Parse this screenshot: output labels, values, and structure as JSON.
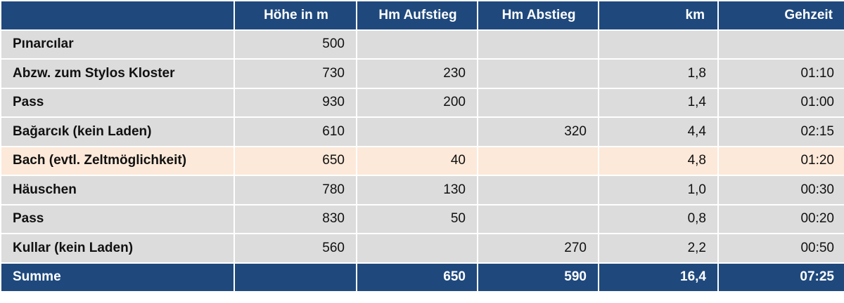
{
  "header": {
    "name": "",
    "height": "Höhe in m",
    "ascent": "Hm Aufstieg",
    "descent": "Hm Abstieg",
    "km": "km",
    "time": "Gehzeit"
  },
  "rows": [
    {
      "name": "Pınarcılar",
      "height": "500",
      "ascent": "",
      "descent": "",
      "km": "",
      "time": ""
    },
    {
      "name": "Abzw. zum Stylos Kloster",
      "height": "730",
      "ascent": "230",
      "descent": "",
      "km": "1,8",
      "time": "01:10"
    },
    {
      "name": "Pass",
      "height": "930",
      "ascent": "200",
      "descent": "",
      "km": "1,4",
      "time": "01:00"
    },
    {
      "name": "Bağarcık (kein Laden)",
      "height": "610",
      "ascent": "",
      "descent": "320",
      "km": "4,4",
      "time": "02:15"
    },
    {
      "name": "Bach (evtl. Zeltmöglichkeit)",
      "height": "650",
      "ascent": "40",
      "descent": "",
      "km": "4,8",
      "time": "01:20"
    },
    {
      "name": "Häuschen",
      "height": "780",
      "ascent": "130",
      "descent": "",
      "km": "1,0",
      "time": "00:30"
    },
    {
      "name": "Pass",
      "height": "830",
      "ascent": "50",
      "descent": "",
      "km": "0,8",
      "time": "00:20"
    },
    {
      "name": "Kullar (kein Laden)",
      "height": "560",
      "ascent": "",
      "descent": "270",
      "km": "2,2",
      "time": "00:50"
    }
  ],
  "highlighted_row_index": 4,
  "footer": {
    "name": "Summe",
    "height": "",
    "ascent": "650",
    "descent": "590",
    "km": "16,4",
    "time": "07:25"
  },
  "colors": {
    "header_bg": "#1f497d",
    "row_bg": "#dcdcdc",
    "highlight_bg": "#fde9d9"
  }
}
